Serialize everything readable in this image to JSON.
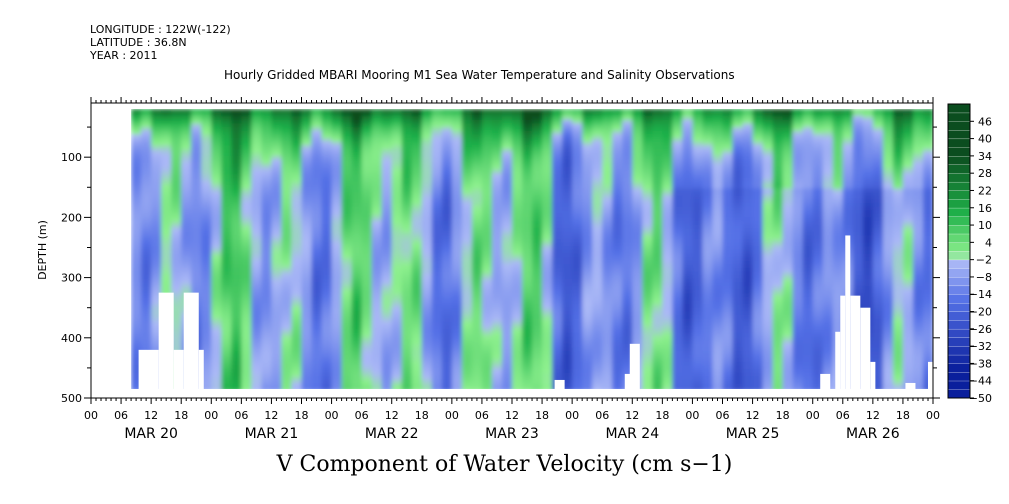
{
  "header": {
    "longitude": "LONGITUDE : 122W(-122)",
    "latitude": "LATITUDE : 36.8N",
    "year": "YEAR : 2011"
  },
  "chart_data": {
    "type": "heatmap",
    "title": "Hourly Gridded MBARI Mooring M1 Sea Water Temperature and Salinity Observations",
    "xlabel": "V Component of Water Velocity (cm s−1)",
    "ylabel": "DEPTH (m)",
    "y_ticks": [
      100,
      200,
      300,
      400,
      500
    ],
    "ylim": [
      500,
      10
    ],
    "y_inverted": true,
    "x_hour_ticks": [
      "00",
      "06",
      "12",
      "18",
      "00",
      "06",
      "12",
      "18",
      "00",
      "06",
      "12",
      "18",
      "00",
      "06",
      "12",
      "18",
      "00",
      "06",
      "12",
      "18",
      "00",
      "06",
      "12",
      "18",
      "00",
      "06",
      "12",
      "18",
      "00"
    ],
    "x_day_labels": [
      "MAR 20",
      "MAR 21",
      "MAR 22",
      "MAR 23",
      "MAR 24",
      "MAR 25",
      "MAR 26"
    ],
    "colorbar_ticks": [
      46,
      40,
      34,
      28,
      22,
      16,
      10,
      4,
      -2,
      -8,
      -14,
      -20,
      -26,
      -32,
      -38,
      -44,
      -50
    ],
    "colorbar_range": [
      -50,
      52
    ],
    "data_start": "MAR 20 08",
    "data_end": "MAR 26 23",
    "surface_depth": 20,
    "bottom_depth": 485,
    "colors": {
      "dark_green": "#0b4d1f",
      "mid_green": "#1fb14a",
      "light_green": "#8ef08e",
      "light_blue": "#aab8f6",
      "mid_blue": "#5470e6",
      "dark_blue": "#0a1f9c"
    }
  }
}
